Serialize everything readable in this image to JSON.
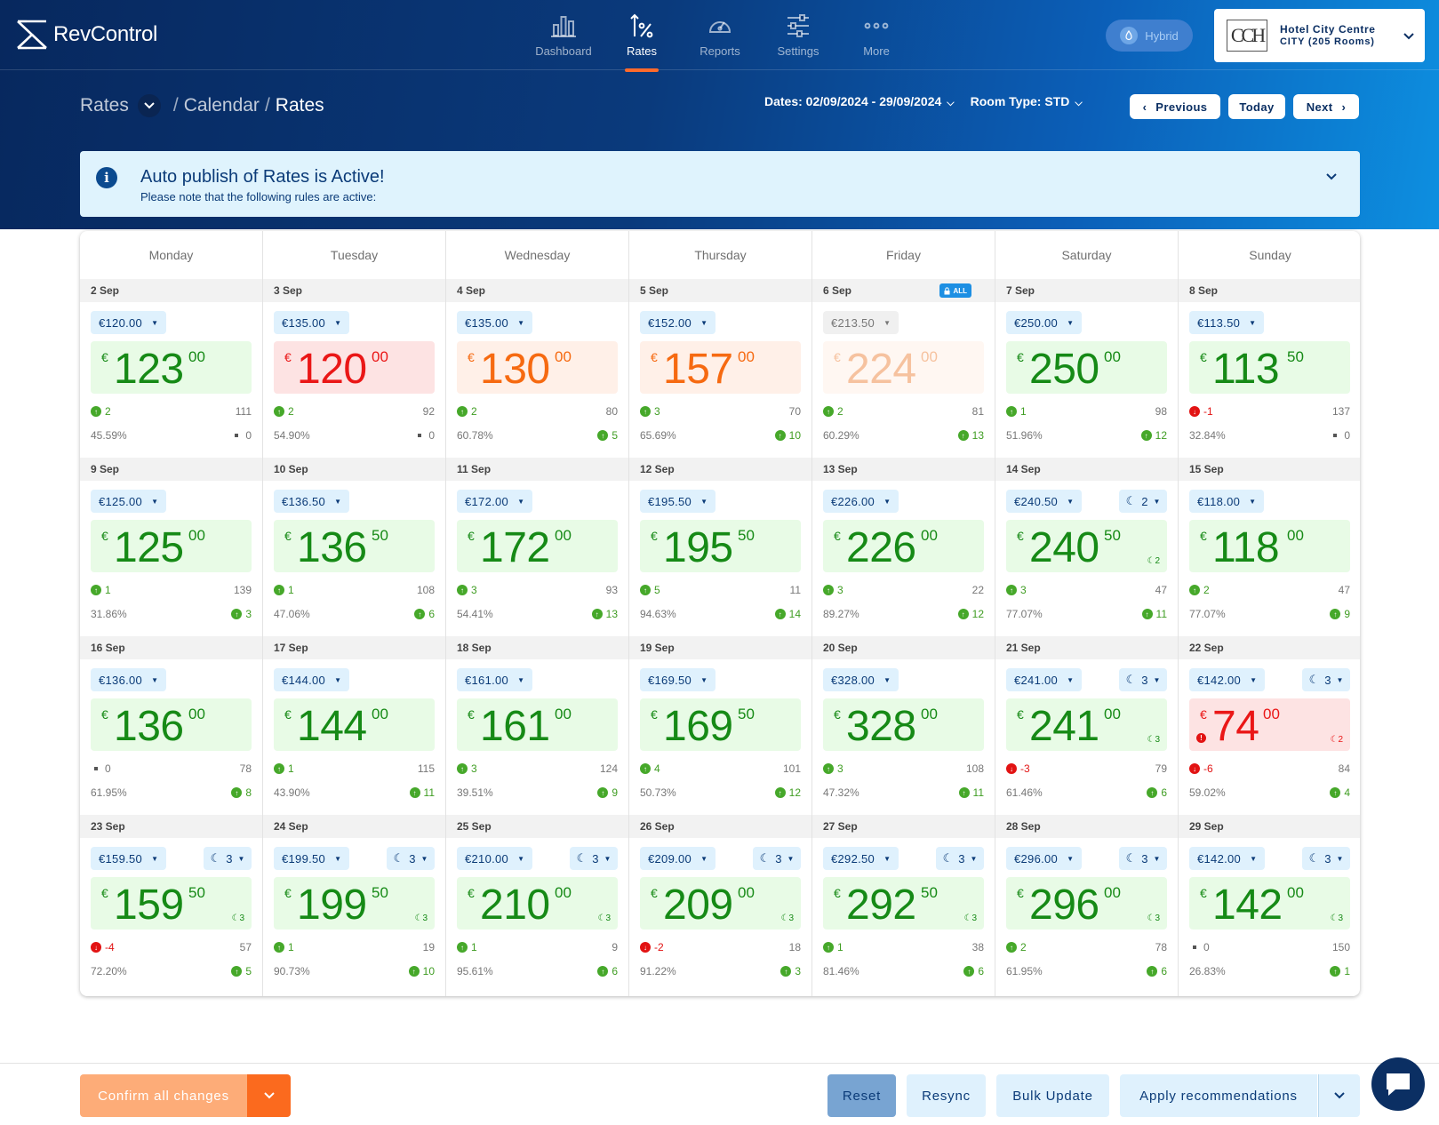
{
  "app": {
    "name": "RevControl"
  },
  "nav": [
    {
      "key": "dashboard",
      "label": "Dashboard",
      "icon": "bar-chart-icon"
    },
    {
      "key": "rates",
      "label": "Rates",
      "icon": "rates-percent-icon",
      "active": true
    },
    {
      "key": "reports",
      "label": "Reports",
      "icon": "gauge-icon"
    },
    {
      "key": "settings",
      "label": "Settings",
      "icon": "sliders-icon"
    },
    {
      "key": "more",
      "label": "More",
      "icon": "more-dots-icon"
    }
  ],
  "mode": {
    "label": "Hybrid"
  },
  "hotel": {
    "name": "Hotel City Centre",
    "sub": "CITY (205 Rooms)",
    "logo_text": "CCH"
  },
  "breadcrumb": {
    "root": "Rates",
    "middle": "Calendar",
    "current": "Rates",
    "sep": "/"
  },
  "filters": {
    "dates": "Dates: 02/09/2024 - 29/09/2024",
    "room_type": "Room Type: STD"
  },
  "pager": {
    "previous": "Previous",
    "today": "Today",
    "next": "Next"
  },
  "alert": {
    "title": "Auto publish of Rates is Active!",
    "text": "Please note that the following rules are active:"
  },
  "weekdays": [
    "Monday",
    "Tuesday",
    "Wednesday",
    "Thursday",
    "Friday",
    "Saturday",
    "Sunday"
  ],
  "lock_label": "ALL",
  "colors": {
    "green": "#168a16",
    "red": "#ea1717",
    "orange": "#f66a11",
    "accent": "#ff6a2b"
  },
  "weeks": [
    [
      {
        "date": "2 Sep",
        "chip": "€120.00",
        "whole": "123",
        "dec": "00",
        "tone": "green",
        "tl_dir": "up",
        "tl": "2",
        "tr": "111",
        "occ": "45.59%",
        "br_dir": "none",
        "br": "0"
      },
      {
        "date": "3 Sep",
        "chip": "€135.00",
        "whole": "120",
        "dec": "00",
        "tone": "red",
        "tl_dir": "up",
        "tl": "2",
        "tr": "92",
        "occ": "54.90%",
        "br_dir": "none",
        "br": "0"
      },
      {
        "date": "4 Sep",
        "chip": "€135.00",
        "whole": "130",
        "dec": "00",
        "tone": "orange",
        "tl_dir": "up",
        "tl": "2",
        "tr": "80",
        "occ": "60.78%",
        "br_dir": "up",
        "br": "5"
      },
      {
        "date": "5 Sep",
        "chip": "€152.00",
        "whole": "157",
        "dec": "00",
        "tone": "orange",
        "tl_dir": "up",
        "tl": "3",
        "tr": "70",
        "occ": "65.69%",
        "br_dir": "up",
        "br": "10"
      },
      {
        "date": "6 Sep",
        "chip": "€213.50",
        "chip_style": "grey",
        "whole": "224",
        "dec": "00",
        "tone": "faded",
        "lock": true,
        "tl_dir": "up",
        "tl": "2",
        "tr": "81",
        "occ": "60.29%",
        "br_dir": "up",
        "br": "13"
      },
      {
        "date": "7 Sep",
        "chip": "€250.00",
        "whole": "250",
        "dec": "00",
        "tone": "green",
        "tl_dir": "up",
        "tl": "1",
        "tr": "98",
        "occ": "51.96%",
        "br_dir": "up",
        "br": "12"
      },
      {
        "date": "8 Sep",
        "chip": "€113.50",
        "whole": "113",
        "dec": "50",
        "tone": "green",
        "tl_dir": "down",
        "tl": "-1",
        "tr": "137",
        "occ": "32.84%",
        "br_dir": "none",
        "br": "0"
      }
    ],
    [
      {
        "date": "9 Sep",
        "chip": "€125.00",
        "whole": "125",
        "dec": "00",
        "tone": "green",
        "tl_dir": "up",
        "tl": "1",
        "tr": "139",
        "occ": "31.86%",
        "br_dir": "up",
        "br": "3"
      },
      {
        "date": "10 Sep",
        "chip": "€136.50",
        "whole": "136",
        "dec": "50",
        "tone": "green",
        "tl_dir": "up",
        "tl": "1",
        "tr": "108",
        "occ": "47.06%",
        "br_dir": "up",
        "br": "6"
      },
      {
        "date": "11 Sep",
        "chip": "€172.00",
        "whole": "172",
        "dec": "00",
        "tone": "green",
        "tl_dir": "up",
        "tl": "3",
        "tr": "93",
        "occ": "54.41%",
        "br_dir": "up",
        "br": "13"
      },
      {
        "date": "12 Sep",
        "chip": "€195.50",
        "whole": "195",
        "dec": "50",
        "tone": "green",
        "tl_dir": "up",
        "tl": "5",
        "tr": "11",
        "occ": "94.63%",
        "br_dir": "up",
        "br": "14"
      },
      {
        "date": "13 Sep",
        "chip": "€226.00",
        "whole": "226",
        "dec": "00",
        "tone": "green",
        "tl_dir": "up",
        "tl": "3",
        "tr": "22",
        "occ": "89.27%",
        "br_dir": "up",
        "br": "12"
      },
      {
        "date": "14 Sep",
        "chip": "€240.50",
        "mlos": "2",
        "whole": "240",
        "dec": "50",
        "moon": "2",
        "tone": "green",
        "tl_dir": "up",
        "tl": "3",
        "tr": "47",
        "occ": "77.07%",
        "br_dir": "up",
        "br": "11"
      },
      {
        "date": "15 Sep",
        "chip": "€118.00",
        "whole": "118",
        "dec": "00",
        "tone": "green",
        "tl_dir": "up",
        "tl": "2",
        "tr": "47",
        "occ": "77.07%",
        "br_dir": "up",
        "br": "9"
      }
    ],
    [
      {
        "date": "16 Sep",
        "chip": "€136.00",
        "whole": "136",
        "dec": "00",
        "tone": "green",
        "tl_dir": "none",
        "tl": "0",
        "tr": "78",
        "occ": "61.95%",
        "br_dir": "up",
        "br": "8"
      },
      {
        "date": "17 Sep",
        "chip": "€144.00",
        "whole": "144",
        "dec": "00",
        "tone": "green",
        "tl_dir": "up",
        "tl": "1",
        "tr": "115",
        "occ": "43.90%",
        "br_dir": "up",
        "br": "11"
      },
      {
        "date": "18 Sep",
        "chip": "€161.00",
        "whole": "161",
        "dec": "00",
        "tone": "green",
        "tl_dir": "up",
        "tl": "3",
        "tr": "124",
        "occ": "39.51%",
        "br_dir": "up",
        "br": "9"
      },
      {
        "date": "19 Sep",
        "chip": "€169.50",
        "whole": "169",
        "dec": "50",
        "tone": "green",
        "tl_dir": "up",
        "tl": "4",
        "tr": "101",
        "occ": "50.73%",
        "br_dir": "up",
        "br": "12"
      },
      {
        "date": "20 Sep",
        "chip": "€328.00",
        "whole": "328",
        "dec": "00",
        "tone": "green",
        "tl_dir": "up",
        "tl": "3",
        "tr": "108",
        "occ": "47.32%",
        "br_dir": "up",
        "br": "11"
      },
      {
        "date": "21 Sep",
        "chip": "€241.00",
        "mlos": "3",
        "whole": "241",
        "dec": "00",
        "moon": "3",
        "tone": "green",
        "tl_dir": "down",
        "tl": "-3",
        "tr": "79",
        "occ": "61.46%",
        "br_dir": "up",
        "br": "6"
      },
      {
        "date": "22 Sep",
        "chip": "€142.00",
        "mlos": "3",
        "whole": "74",
        "dec": "00",
        "moon": "2",
        "warn": true,
        "tone": "red",
        "tl_dir": "down",
        "tl": "-6",
        "tr": "84",
        "occ": "59.02%",
        "br_dir": "up",
        "br": "4"
      }
    ],
    [
      {
        "date": "23 Sep",
        "chip": "€159.50",
        "mlos": "3",
        "whole": "159",
        "dec": "50",
        "moon": "3",
        "tone": "green",
        "tl_dir": "down",
        "tl": "-4",
        "tr": "57",
        "occ": "72.20%",
        "br_dir": "up",
        "br": "5"
      },
      {
        "date": "24 Sep",
        "chip": "€199.50",
        "mlos": "3",
        "whole": "199",
        "dec": "50",
        "moon": "3",
        "tone": "green",
        "tl_dir": "up",
        "tl": "1",
        "tr": "19",
        "occ": "90.73%",
        "br_dir": "up",
        "br": "10"
      },
      {
        "date": "25 Sep",
        "chip": "€210.00",
        "mlos": "3",
        "whole": "210",
        "dec": "00",
        "moon": "3",
        "tone": "green",
        "tl_dir": "up",
        "tl": "1",
        "tr": "9",
        "occ": "95.61%",
        "br_dir": "up",
        "br": "6"
      },
      {
        "date": "26 Sep",
        "chip": "€209.00",
        "mlos": "3",
        "whole": "209",
        "dec": "00",
        "moon": "3",
        "tone": "green",
        "tl_dir": "down",
        "tl": "-2",
        "tr": "18",
        "occ": "91.22%",
        "br_dir": "up",
        "br": "3"
      },
      {
        "date": "27 Sep",
        "chip": "€292.50",
        "mlos": "3",
        "whole": "292",
        "dec": "50",
        "moon": "3",
        "tone": "green",
        "tl_dir": "up",
        "tl": "1",
        "tr": "38",
        "occ": "81.46%",
        "br_dir": "up",
        "br": "6"
      },
      {
        "date": "28 Sep",
        "chip": "€296.00",
        "mlos": "3",
        "whole": "296",
        "dec": "00",
        "moon": "3",
        "tone": "green",
        "tl_dir": "up",
        "tl": "2",
        "tr": "78",
        "occ": "61.95%",
        "br_dir": "up",
        "br": "6"
      },
      {
        "date": "29 Sep",
        "chip": "€142.00",
        "mlos": "3",
        "whole": "142",
        "dec": "00",
        "moon": "3",
        "tone": "green",
        "tl_dir": "none",
        "tl": "0",
        "tr": "150",
        "occ": "26.83%",
        "br_dir": "up",
        "br": "1"
      }
    ]
  ],
  "currency": "€",
  "footer": {
    "confirm": "Confirm all changes",
    "reset": "Reset",
    "resync": "Resync",
    "bulk": "Bulk Update",
    "apply": "Apply recommendations"
  }
}
